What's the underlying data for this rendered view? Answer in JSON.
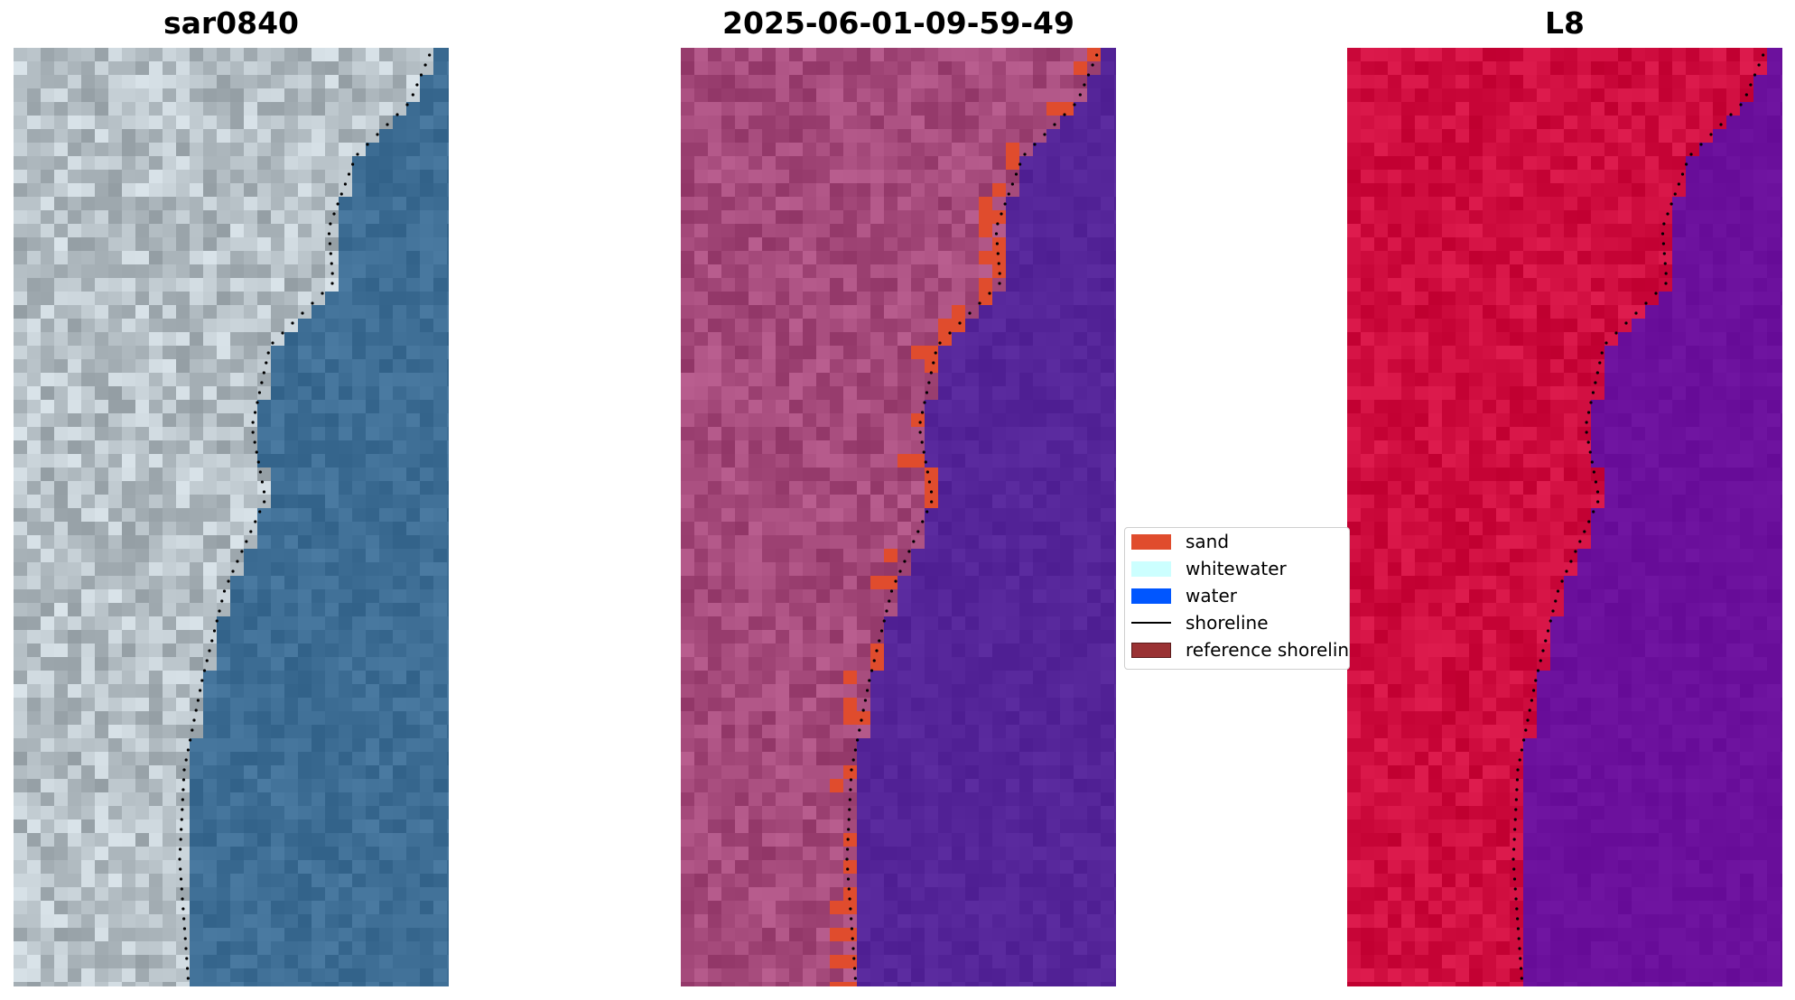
{
  "panels": [
    {
      "title": "sar0840",
      "kind": "rgb"
    },
    {
      "title": "2025-06-01-09-59-49",
      "kind": "classified"
    },
    {
      "title": "L8",
      "kind": "falsecolor"
    }
  ],
  "legend": {
    "items": [
      {
        "label": "sand",
        "color": "#e04c2d",
        "type": "patch"
      },
      {
        "label": "whitewater",
        "color": "#ccffff",
        "type": "patch"
      },
      {
        "label": "water",
        "color": "#0056ff",
        "type": "patch"
      },
      {
        "label": "shoreline",
        "color": "#000000",
        "type": "line"
      },
      {
        "label": "reference shoreline",
        "color": "#9a3234",
        "type": "patch"
      }
    ]
  },
  "colors": {
    "land_rgb": "#b7c1c7",
    "sea_rgb": "#3e6e95",
    "land_classified": "#a54a7b",
    "sea_classified": "#552599",
    "land_falsecolor": "#cf0d3f",
    "sea_falsecolor": "#6b109c",
    "sand_overlay": "#e04c2d",
    "shoreline": "#000000"
  }
}
